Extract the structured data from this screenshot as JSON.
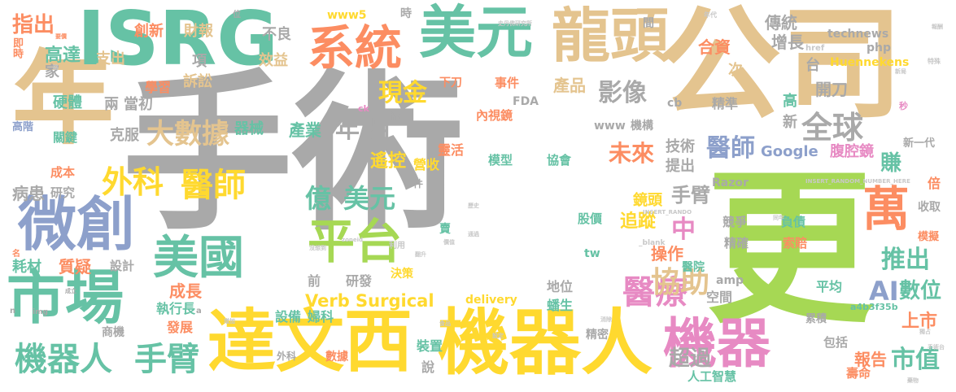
{
  "palette": {
    "gray": "#a9a9a9",
    "tan": "#e4c48f",
    "teal": "#66c2a5",
    "green": "#a6d854",
    "yellow": "#ffd92f",
    "orange": "#fc8d62",
    "blue": "#8da0cb",
    "pink": "#e78ac3",
    "lightgray": "#c8c8c8"
  },
  "words": [
    {
      "text": "手術",
      "color": "gray"
    },
    {
      "text": "公司",
      "color": "tan"
    },
    {
      "text": "更",
      "color": "green"
    },
    {
      "text": "年",
      "color": "tan"
    },
    {
      "text": "ISRG",
      "color": "teal"
    },
    {
      "text": "美元",
      "color": "teal"
    },
    {
      "text": "龍頭",
      "color": "tan"
    },
    {
      "text": "系統",
      "color": "orange"
    },
    {
      "text": "微創",
      "color": "blue"
    },
    {
      "text": "市場",
      "color": "teal"
    },
    {
      "text": "達文西",
      "color": "yellow"
    },
    {
      "text": "機器人",
      "color": "yellow"
    },
    {
      "text": "平台",
      "color": "green"
    },
    {
      "text": "美國",
      "color": "teal"
    },
    {
      "text": "機器",
      "color": "pink"
    },
    {
      "text": "萬",
      "color": "orange"
    },
    {
      "text": "機器人",
      "color": "teal"
    },
    {
      "text": "手臂",
      "color": "teal"
    },
    {
      "text": "醫療",
      "color": "pink"
    },
    {
      "text": "醫師",
      "color": "yellow"
    },
    {
      "text": "外科",
      "color": "yellow"
    },
    {
      "text": "大數據",
      "color": "tan"
    },
    {
      "text": "全球",
      "color": "gray"
    },
    {
      "text": "現金",
      "color": "yellow"
    },
    {
      "text": "影像",
      "color": "gray"
    },
    {
      "text": "億",
      "color": "teal"
    },
    {
      "text": "美元",
      "color": "teal"
    },
    {
      "text": "協助",
      "color": "tan"
    },
    {
      "text": "推出",
      "color": "teal"
    },
    {
      "text": "AI",
      "color": "blue"
    },
    {
      "text": "市值",
      "color": "teal"
    },
    {
      "text": "數位",
      "color": "teal"
    },
    {
      "text": "未來",
      "color": "orange"
    },
    {
      "text": "醫師",
      "color": "blue"
    },
    {
      "text": "Verb Surgical",
      "color": "yellow"
    },
    {
      "text": "中",
      "color": "pink"
    },
    {
      "text": "年",
      "color": "gray"
    },
    {
      "text": "月",
      "color": "gray"
    },
    {
      "text": "超過",
      "color": "gray"
    },
    {
      "text": "上市",
      "color": "orange"
    },
    {
      "text": "報告",
      "color": "orange"
    },
    {
      "text": "指出",
      "color": "orange"
    },
    {
      "text": "高達",
      "color": "teal"
    },
    {
      "text": "Google",
      "color": "blue"
    },
    {
      "text": "賺",
      "color": "teal"
    },
    {
      "text": "手臂",
      "color": "gray"
    },
    {
      "text": "遙控",
      "color": "yellow"
    },
    {
      "text": "產業",
      "color": "teal"
    },
    {
      "text": "成長",
      "color": "orange"
    },
    {
      "text": "追蹤",
      "color": "yellow"
    },
    {
      "text": "操作",
      "color": "orange"
    },
    {
      "text": "產品",
      "color": "tan"
    },
    {
      "text": "合資",
      "color": "orange"
    },
    {
      "text": "傳統",
      "color": "gray"
    },
    {
      "text": "增長",
      "color": "gray"
    },
    {
      "text": "開刀",
      "color": "gray"
    },
    {
      "text": "精準",
      "color": "gray"
    },
    {
      "text": "technews",
      "color": "gray"
    },
    {
      "text": "Huennekens",
      "color": "yellow"
    },
    {
      "text": "腹腔鏡",
      "color": "pink"
    },
    {
      "text": "鏡頭",
      "color": "yellow"
    },
    {
      "text": "技術",
      "color": "gray"
    },
    {
      "text": "提出",
      "color": "gray"
    },
    {
      "text": "靈活",
      "color": "orange"
    },
    {
      "text": "營收",
      "color": "yellow"
    },
    {
      "text": "質疑",
      "color": "orange"
    },
    {
      "text": "病患",
      "color": "gray"
    },
    {
      "text": "耗材",
      "color": "teal"
    },
    {
      "text": "硬體",
      "color": "teal"
    },
    {
      "text": "兩",
      "color": "gray"
    },
    {
      "text": "當初",
      "color": "gray"
    },
    {
      "text": "學習",
      "color": "orange"
    },
    {
      "text": "訴訟",
      "color": "tan"
    },
    {
      "text": "支出",
      "color": "tan"
    },
    {
      "text": "創新",
      "color": "orange"
    },
    {
      "text": "財報",
      "color": "tan"
    },
    {
      "text": "不良",
      "color": "gray"
    },
    {
      "text": "效益",
      "color": "tan"
    },
    {
      "text": "項",
      "color": "gray"
    },
    {
      "text": "家",
      "color": "gray"
    },
    {
      "text": "即時",
      "color": "orange"
    },
    {
      "text": "高階",
      "color": "blue"
    },
    {
      "text": "關鍵",
      "color": "teal"
    },
    {
      "text": "克服",
      "color": "gray"
    },
    {
      "text": "器械",
      "color": "teal"
    },
    {
      "text": "研究",
      "color": "gray"
    },
    {
      "text": "成本",
      "color": "orange"
    },
    {
      "text": "設計",
      "color": "gray"
    },
    {
      "text": "執行長",
      "color": "teal"
    },
    {
      "text": "發展",
      "color": "orange"
    },
    {
      "text": "商機",
      "color": "gray"
    },
    {
      "text": "設備",
      "color": "teal"
    },
    {
      "text": "婦科",
      "color": "teal"
    },
    {
      "text": "研發",
      "color": "gray"
    },
    {
      "text": "前",
      "color": "gray"
    },
    {
      "text": "決策",
      "color": "yellow"
    },
    {
      "text": "地位",
      "color": "gray"
    },
    {
      "text": "蟠生",
      "color": "teal"
    },
    {
      "text": "空間",
      "color": "gray"
    },
    {
      "text": "平均",
      "color": "teal"
    },
    {
      "text": "裝置",
      "color": "teal"
    },
    {
      "text": "精密",
      "color": "gray"
    },
    {
      "text": "說",
      "color": "gray"
    },
    {
      "text": "數據",
      "color": "orange"
    },
    {
      "text": "人工智慧",
      "color": "teal"
    },
    {
      "text": "壽命",
      "color": "orange"
    },
    {
      "text": "包括",
      "color": "gray"
    },
    {
      "text": "累積",
      "color": "gray"
    },
    {
      "text": "競爭",
      "color": "gray"
    },
    {
      "text": "負債",
      "color": "teal"
    },
    {
      "text": "精確",
      "color": "gray"
    },
    {
      "text": "索賠",
      "color": "orange"
    },
    {
      "text": "醫院",
      "color": "teal"
    },
    {
      "text": "股價",
      "color": "teal"
    },
    {
      "text": "模型",
      "color": "teal"
    },
    {
      "text": "協會",
      "color": "teal"
    },
    {
      "text": "內視鏡",
      "color": "orange"
    },
    {
      "text": "事件",
      "color": "orange"
    },
    {
      "text": "下刀",
      "color": "orange"
    },
    {
      "text": "FDA",
      "color": "gray"
    },
    {
      "text": "機構",
      "color": "gray"
    },
    {
      "text": "www",
      "color": "gray"
    },
    {
      "text": "www5",
      "color": "yellow"
    },
    {
      "text": "時",
      "color": "gray"
    },
    {
      "text": "間",
      "color": "gray"
    },
    {
      "text": "cb",
      "color": "gray"
    },
    {
      "text": "高",
      "color": "teal"
    },
    {
      "text": "新",
      "color": "gray"
    },
    {
      "text": "台",
      "color": "gray"
    },
    {
      "text": "次",
      "color": "tan"
    },
    {
      "text": "php",
      "color": "gray"
    },
    {
      "text": "Razor",
      "color": "gray"
    },
    {
      "text": "amp",
      "color": "gray"
    },
    {
      "text": "tw",
      "color": "teal"
    },
    {
      "text": "delivery",
      "color": "yellow"
    },
    {
      "text": "a4b3f35b",
      "color": "teal"
    },
    {
      "text": "賣",
      "color": "teal"
    },
    {
      "text": "倍",
      "color": "orange"
    },
    {
      "text": "收取",
      "color": "gray"
    },
    {
      "text": "模擬",
      "color": "orange"
    },
    {
      "text": "新一代",
      "color": "gray"
    },
    {
      "text": "件",
      "color": "gray"
    },
    {
      "text": "術",
      "color": "gray"
    },
    {
      "text": "href",
      "color": "lightgray"
    },
    {
      "text": "_blank",
      "color": "lightgray"
    },
    {
      "text": "ck",
      "color": "pink"
    },
    {
      "text": "INSERT_RANDOM_NUMBER_HERE",
      "color": "lightgray"
    },
    {
      "text": "INSERT_RANDO",
      "color": "lightgray"
    },
    {
      "text": "史丹佛研究所",
      "color": "lightgray"
    },
    {
      "text": "位",
      "color": "gray"
    },
    {
      "text": "年代",
      "color": "lightgray"
    },
    {
      "text": "秒",
      "color": "pink"
    },
    {
      "text": "特殊",
      "color": "lightgray"
    },
    {
      "text": "新局",
      "color": "lightgray"
    },
    {
      "text": "報酬",
      "color": "lightgray"
    },
    {
      "text": "利用",
      "color": "lightgray"
    },
    {
      "text": "翻升",
      "color": "lightgray"
    },
    {
      "text": "歷史",
      "color": "lightgray"
    },
    {
      "text": "通過",
      "color": "lightgray"
    },
    {
      "text": "價值",
      "color": "lightgray"
    },
    {
      "text": "食品",
      "color": "lightgray"
    },
    {
      "text": "消除",
      "color": "lightgray"
    },
    {
      "text": "設定",
      "color": "lightgray"
    },
    {
      "text": "藥物",
      "color": "lightgray"
    },
    {
      "text": "手術台",
      "color": "lightgray"
    },
    {
      "text": "獨占",
      "color": "lightgray"
    },
    {
      "text": "名",
      "color": "orange"
    },
    {
      "text": "外科",
      "color": "gray"
    },
    {
      "text": "img",
      "color": "gray"
    },
    {
      "text": "n",
      "color": "gray"
    },
    {
      "text": "a",
      "color": "gray"
    },
    {
      "text": "成立",
      "color": "gray"
    },
    {
      "text": "一路",
      "color": "lightgray"
    },
    {
      "text": "要價",
      "color": "orange"
    },
    {
      "text": "zoneid",
      "color": "lightgray"
    },
    {
      "text": "沒想到",
      "color": "lightgray"
    },
    {
      "text": "同年",
      "color": "lightgray"
    },
    {
      "text": "增加",
      "color": "lightgray"
    }
  ]
}
